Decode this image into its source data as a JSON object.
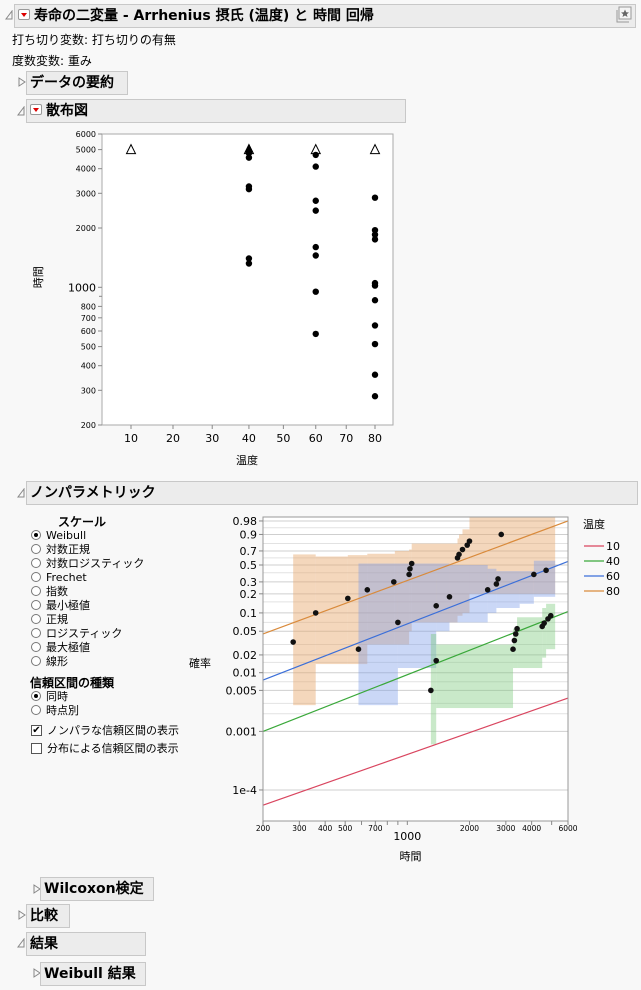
{
  "report": {
    "title": "寿命の二変量 - Arrhenius 摂氏 (温度) と 時間 回帰",
    "censor_label": "打ち切り変数: 打ち切りの有無",
    "freq_label": "度数変数: 重み"
  },
  "sections": {
    "data_summary": "データの要約",
    "scatter": "散布図",
    "nonparametric": "ノンパラメトリック",
    "wilcoxon": "Wilcoxon検定",
    "comparison": "比較",
    "results": "結果",
    "weibull_results": "Weibull 結果"
  },
  "nonparametric_panel": {
    "scale_heading": "スケール",
    "scale_options": [
      {
        "label": "Weibull",
        "selected": true
      },
      {
        "label": "対数正規",
        "selected": false
      },
      {
        "label": "対数ロジスティック",
        "selected": false
      },
      {
        "label": "Frechet",
        "selected": false
      },
      {
        "label": "指数",
        "selected": false
      },
      {
        "label": "最小極値",
        "selected": false
      },
      {
        "label": "正規",
        "selected": false
      },
      {
        "label": "ロジスティック",
        "selected": false
      },
      {
        "label": "最大極値",
        "selected": false
      },
      {
        "label": "線形",
        "selected": false
      }
    ],
    "ci_type_heading": "信頼区間の種類",
    "ci_type_options": [
      {
        "label": "同時",
        "selected": true
      },
      {
        "label": "時点別",
        "selected": false
      }
    ],
    "checkboxes": [
      {
        "label": "ノンパラな信頼区間の表示",
        "checked": true
      },
      {
        "label": "分布による信頼区間の表示",
        "checked": false
      }
    ]
  },
  "chart_data": [
    {
      "type": "scatter",
      "title": "散布図",
      "xlabel": "温度",
      "ylabel": "時間",
      "x_scale": "arrhenius",
      "y_scale": "log",
      "ylim": [
        200,
        6000
      ],
      "x_ticks": [
        10,
        20,
        30,
        40,
        50,
        60,
        70,
        80
      ],
      "y_ticks": [
        200,
        300,
        400,
        500,
        600,
        700,
        800,
        1000,
        2000,
        3000,
        4000,
        5000,
        6000
      ],
      "censored_marker": "triangle",
      "points": [
        {
          "x": 10,
          "y": 5000,
          "censored": true
        },
        {
          "x": 40,
          "y": 5000,
          "censored": true
        },
        {
          "x": 40,
          "y": 4800,
          "censored": false
        },
        {
          "x": 40,
          "y": 4550,
          "censored": false
        },
        {
          "x": 40,
          "y": 3250,
          "censored": false
        },
        {
          "x": 40,
          "y": 3150,
          "censored": false
        },
        {
          "x": 40,
          "y": 1400,
          "censored": false
        },
        {
          "x": 40,
          "y": 1320,
          "censored": false
        },
        {
          "x": 60,
          "y": 5000,
          "censored": true
        },
        {
          "x": 60,
          "y": 4700,
          "censored": false
        },
        {
          "x": 60,
          "y": 4100,
          "censored": false
        },
        {
          "x": 60,
          "y": 2750,
          "censored": false
        },
        {
          "x": 60,
          "y": 2450,
          "censored": false
        },
        {
          "x": 60,
          "y": 1600,
          "censored": false
        },
        {
          "x": 60,
          "y": 1450,
          "censored": false
        },
        {
          "x": 60,
          "y": 950,
          "censored": false
        },
        {
          "x": 60,
          "y": 580,
          "censored": false
        },
        {
          "x": 80,
          "y": 5000,
          "censored": true
        },
        {
          "x": 80,
          "y": 2850,
          "censored": false
        },
        {
          "x": 80,
          "y": 1950,
          "censored": false
        },
        {
          "x": 80,
          "y": 1850,
          "censored": false
        },
        {
          "x": 80,
          "y": 1750,
          "censored": false
        },
        {
          "x": 80,
          "y": 1050,
          "censored": false
        },
        {
          "x": 80,
          "y": 1020,
          "censored": false
        },
        {
          "x": 80,
          "y": 860,
          "censored": false
        },
        {
          "x": 80,
          "y": 640,
          "censored": false
        },
        {
          "x": 80,
          "y": 515,
          "censored": false
        },
        {
          "x": 80,
          "y": 360,
          "censored": false
        },
        {
          "x": 80,
          "y": 280,
          "censored": false
        }
      ]
    },
    {
      "type": "line",
      "title": "ノンパラメトリック",
      "xlabel": "時間",
      "ylabel": "確率",
      "x_scale": "log",
      "y_scale": "weibull",
      "xlim": [
        200,
        6000
      ],
      "x_ticks": [
        200,
        300,
        400,
        500,
        700,
        1000,
        2000,
        3000,
        4000,
        6000
      ],
      "y_ticks": [
        0.98,
        0.9,
        0.7,
        0.5,
        0.3,
        0.2,
        0.1,
        0.05,
        0.02,
        0.01,
        0.005,
        0.001,
        0.0001
      ],
      "y_tick_labels": [
        "0.98",
        "0.9",
        "0.7",
        "0.5",
        "0.3",
        "0.2",
        "0.1",
        "0.05",
        "0.02",
        "0.01",
        "0.005",
        "0.001",
        "1e-4"
      ],
      "legend_title": "温度",
      "legend_position": "right",
      "series": [
        {
          "name": "10",
          "color": "#d9455f",
          "line": [
            [
              200,
              5.5e-05
            ],
            [
              6000,
              0.0037
            ]
          ],
          "points": []
        },
        {
          "name": "40",
          "color": "#3aa83a",
          "line": [
            [
              200,
              0.001
            ],
            [
              6000,
              0.105
            ]
          ],
          "points": [
            [
              1300,
              0.005
            ],
            [
              1380,
              0.016
            ],
            [
              3250,
              0.025
            ],
            [
              3300,
              0.035
            ],
            [
              3350,
              0.045
            ],
            [
              3400,
              0.055
            ],
            [
              4500,
              0.06
            ],
            [
              4600,
              0.068
            ],
            [
              4800,
              0.08
            ],
            [
              4950,
              0.09
            ]
          ]
        },
        {
          "name": "60",
          "color": "#3b6fd9",
          "line": [
            [
              200,
              0.0075
            ],
            [
              6000,
              0.55
            ]
          ],
          "points": [
            [
              580,
              0.025
            ],
            [
              900,
              0.07
            ],
            [
              1380,
              0.13
            ],
            [
              1600,
              0.18
            ],
            [
              2450,
              0.23
            ],
            [
              2700,
              0.28
            ],
            [
              2750,
              0.33
            ],
            [
              4100,
              0.38
            ],
            [
              4700,
              0.43
            ]
          ]
        },
        {
          "name": "80",
          "color": "#d98a3b",
          "line": [
            [
              200,
              0.045
            ],
            [
              6000,
              0.98
            ]
          ],
          "points": [
            [
              280,
              0.033
            ],
            [
              360,
              0.1
            ],
            [
              515,
              0.17
            ],
            [
              640,
              0.23
            ],
            [
              860,
              0.3
            ],
            [
              1020,
              0.38
            ],
            [
              1030,
              0.45
            ],
            [
              1050,
              0.52
            ],
            [
              1750,
              0.6
            ],
            [
              1780,
              0.65
            ],
            [
              1850,
              0.72
            ],
            [
              1950,
              0.78
            ],
            [
              2000,
              0.83
            ],
            [
              2850,
              0.9
            ]
          ]
        }
      ]
    }
  ]
}
